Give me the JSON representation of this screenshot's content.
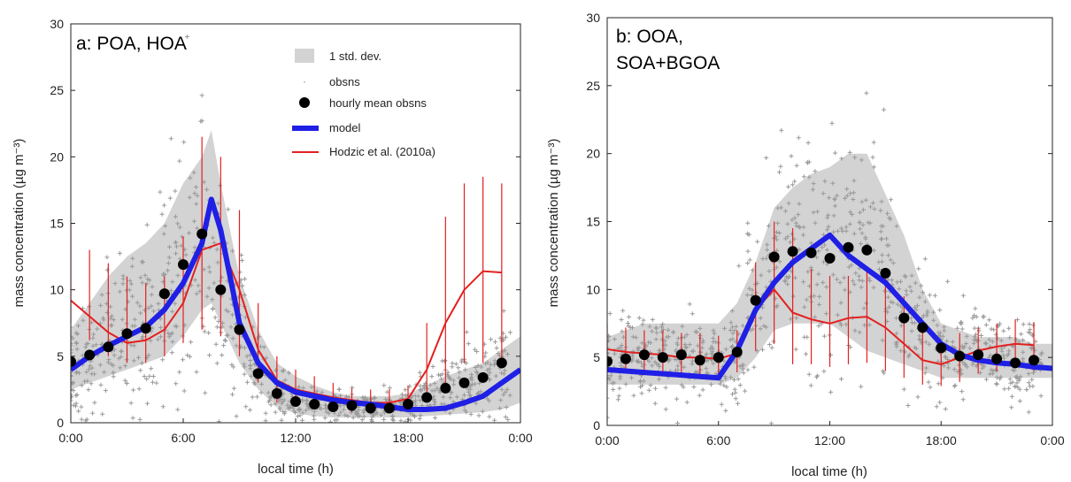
{
  "colors": {
    "band": "#d3d3d3",
    "obs": "#999999",
    "mean": "#000000",
    "model": "#1f1fe6",
    "hodzic": "#e32020",
    "axis": "#222222"
  },
  "chart_data": [
    {
      "type": "line",
      "title_lines": [
        "a: POA, HOA"
      ],
      "xlabel": "local time (h)",
      "ylabel": "mass concentration (µg m⁻³)",
      "xlim": [
        0,
        24
      ],
      "ylim": [
        0,
        30
      ],
      "xticks": [
        0,
        6,
        12,
        18,
        24
      ],
      "xtick_labels": [
        "0:00",
        "6:00",
        "12:00",
        "18:00",
        "0:00"
      ],
      "yticks": [
        0,
        5,
        10,
        15,
        20,
        25,
        30
      ],
      "legend": {
        "placement": "top-center",
        "entries": [
          {
            "kind": "band",
            "label": "1 std. dev."
          },
          {
            "kind": "obs",
            "label": "obsns"
          },
          {
            "kind": "mean",
            "label": "hourly mean obsns"
          },
          {
            "kind": "model",
            "label": "model"
          },
          {
            "kind": "hodzic",
            "label": "Hodzic et al. (2010a)"
          }
        ]
      },
      "std_band": {
        "x": [
          0,
          1,
          2,
          3,
          4,
          5,
          6,
          7,
          7.5,
          8,
          9,
          10,
          11,
          12,
          13,
          14,
          15,
          16,
          17,
          18,
          19,
          20,
          21,
          22,
          23,
          24
        ],
        "lower": [
          2.5,
          3,
          3.5,
          4,
          4.5,
          5,
          6.5,
          8.5,
          9,
          7.5,
          4.5,
          2.5,
          1.2,
          0.7,
          0.5,
          0.4,
          0.4,
          0.4,
          0.4,
          0.4,
          0.5,
          0.6,
          0.7,
          0.8,
          1.0,
          1.5
        ],
        "upper": [
          7,
          9,
          11,
          12.5,
          13.5,
          15,
          18,
          20,
          22,
          18,
          11,
          7,
          4.5,
          3.5,
          2.8,
          2.3,
          2,
          2,
          2,
          2.2,
          2.8,
          3.5,
          4,
          4.5,
          5.5,
          6.5
        ]
      },
      "hourly_mean": {
        "x": [
          0,
          1,
          2,
          3,
          4,
          5,
          6,
          7,
          8,
          9,
          10,
          11,
          12,
          13,
          14,
          15,
          16,
          17,
          18,
          19,
          20,
          21,
          22,
          23
        ],
        "y": [
          4.6,
          5.1,
          5.7,
          6.7,
          7.1,
          9.7,
          11.9,
          14.2,
          10.0,
          7.0,
          3.7,
          2.2,
          1.6,
          1.4,
          1.2,
          1.3,
          1.1,
          1.1,
          1.4,
          1.9,
          2.6,
          3.0,
          3.4,
          4.5
        ]
      },
      "model": {
        "x": [
          0,
          1,
          2,
          3,
          4,
          5,
          6,
          7,
          7.5,
          8,
          9,
          10,
          11,
          12,
          13,
          14,
          15,
          16,
          17,
          18,
          19,
          20,
          21,
          22,
          23,
          24
        ],
        "y": [
          4.0,
          5.0,
          5.8,
          6.5,
          7.2,
          8.5,
          10.5,
          13.5,
          16.8,
          14.5,
          7.5,
          4.5,
          3.0,
          2.3,
          2.0,
          1.7,
          1.5,
          1.4,
          1.2,
          1.0,
          1.0,
          1.1,
          1.5,
          2.0,
          3.0,
          4.0
        ]
      },
      "hodzic": {
        "x": [
          0,
          1,
          2,
          3,
          4,
          5,
          6,
          7,
          8,
          9,
          10,
          11,
          12,
          13,
          14,
          15,
          16,
          17,
          18,
          19,
          20,
          21,
          22,
          23
        ],
        "y": [
          9.2,
          8.0,
          6.8,
          6.0,
          6.2,
          7.0,
          9.0,
          13.0,
          13.5,
          10.0,
          5.5,
          3.2,
          2.5,
          2.2,
          1.9,
          1.7,
          1.5,
          1.5,
          1.8,
          4.0,
          7.5,
          10.0,
          11.4,
          11.3
        ],
        "err_low": [
          7.5,
          6.2,
          5.0,
          4.5,
          4.5,
          5.0,
          6.0,
          7.0,
          6.5,
          5.0,
          3.0,
          1.5,
          1.2,
          1.0,
          0.9,
          0.8,
          0.7,
          0.8,
          0.9,
          1.5,
          3.0,
          4.5,
          4.5,
          4.8
        ],
        "err_high": [
          15.0,
          13.0,
          12.0,
          11.0,
          10.5,
          11.0,
          14.0,
          21.5,
          20.0,
          16.0,
          9.0,
          5.0,
          4.0,
          3.5,
          3.0,
          2.6,
          2.5,
          2.5,
          2.8,
          7.5,
          15.5,
          18.0,
          18.5,
          18.0
        ]
      },
      "obs_scatter": {
        "count_per_hour": 40,
        "center": [
          4.6,
          5.1,
          5.7,
          6.7,
          7.1,
          9.7,
          11.9,
          14.2,
          10.0,
          7.0,
          3.7,
          2.2,
          1.6,
          1.4,
          1.2,
          1.3,
          1.1,
          1.1,
          1.4,
          1.9,
          2.6,
          3.0,
          3.4,
          4.5
        ],
        "spread": [
          3.5,
          4.0,
          4.5,
          5.0,
          5.5,
          6.5,
          7.5,
          8.5,
          6.5,
          4.5,
          2.5,
          1.6,
          1.2,
          1.0,
          0.9,
          0.9,
          0.8,
          0.9,
          1.2,
          1.6,
          2.0,
          2.3,
          2.6,
          3.0
        ]
      }
    },
    {
      "type": "line",
      "title_lines": [
        "b: OOA,",
        "SOA+BGOA"
      ],
      "xlabel": "local time (h)",
      "ylabel": "mass concentration (µg m⁻³)",
      "xlim": [
        0,
        24
      ],
      "ylim": [
        0,
        30
      ],
      "xticks": [
        0,
        6,
        12,
        18,
        24
      ],
      "xtick_labels": [
        "0:00",
        "6:00",
        "12:00",
        "18:00",
        "0:00"
      ],
      "yticks": [
        0,
        5,
        10,
        15,
        20,
        25,
        30
      ],
      "std_band": {
        "x": [
          0,
          1,
          2,
          3,
          4,
          5,
          6,
          7,
          8,
          9,
          10,
          11,
          12,
          13,
          14,
          15,
          16,
          17,
          18,
          19,
          20,
          21,
          22,
          23,
          24
        ],
        "lower": [
          3,
          3,
          3,
          3,
          3,
          3,
          3,
          3.5,
          5,
          7,
          7.5,
          7.5,
          7.5,
          6.5,
          5.5,
          5,
          4.5,
          4,
          3.5,
          3.5,
          3.5,
          3.5,
          3.5,
          3.5,
          3.5
        ],
        "upper": [
          6.5,
          7,
          7.5,
          7.5,
          7.5,
          7.5,
          7.5,
          9,
          12,
          16,
          17.5,
          18.5,
          19,
          20,
          20,
          17,
          14,
          10,
          7.5,
          7,
          6.5,
          6.5,
          6.5,
          6,
          6
        ]
      },
      "hourly_mean": {
        "x": [
          0,
          1,
          2,
          3,
          4,
          5,
          6,
          7,
          8,
          9,
          10,
          11,
          12,
          13,
          14,
          15,
          16,
          17,
          18,
          19,
          20,
          21,
          22,
          23
        ],
        "y": [
          4.7,
          4.9,
          5.2,
          5.0,
          5.2,
          4.8,
          5.0,
          5.4,
          9.2,
          12.4,
          12.8,
          12.7,
          12.3,
          13.1,
          12.9,
          11.2,
          7.9,
          7.2,
          5.7,
          5.1,
          5.2,
          4.9,
          4.6,
          4.8
        ]
      },
      "model": {
        "x": [
          0,
          1,
          2,
          3,
          4,
          5,
          6,
          7,
          8,
          9,
          10,
          11,
          12,
          13,
          14,
          15,
          16,
          17,
          18,
          19,
          20,
          21,
          22,
          23,
          24
        ],
        "y": [
          4.1,
          4.0,
          3.9,
          3.8,
          3.7,
          3.6,
          3.5,
          5.5,
          8.5,
          10.5,
          12.0,
          13.0,
          14.0,
          12.5,
          11.5,
          10.5,
          9.0,
          7.5,
          6.0,
          5.2,
          4.8,
          4.6,
          4.5,
          4.3,
          4.2
        ]
      },
      "hodzic": {
        "x": [
          0,
          1,
          2,
          3,
          4,
          5,
          6,
          7,
          8,
          9,
          10,
          11,
          12,
          13,
          14,
          15,
          16,
          17,
          18,
          19,
          20,
          21,
          22,
          23
        ],
        "y": [
          5.6,
          5.4,
          5.3,
          5.2,
          5.0,
          5.0,
          4.9,
          5.3,
          8.5,
          10.0,
          8.3,
          7.8,
          7.5,
          7.9,
          8.0,
          7.2,
          6.0,
          4.8,
          4.5,
          5.0,
          5.5,
          5.8,
          6.0,
          5.9
        ],
        "err_low": [
          4.0,
          4.0,
          4.0,
          3.8,
          3.7,
          3.7,
          3.6,
          3.9,
          5.5,
          6.0,
          4.5,
          4.5,
          4.3,
          4.5,
          4.6,
          4.0,
          3.5,
          3.0,
          2.9,
          3.2,
          3.8,
          4.0,
          4.2,
          4.0
        ],
        "err_high": [
          7.5,
          7.2,
          7.0,
          7.0,
          6.8,
          6.8,
          6.6,
          7.0,
          12.0,
          15.0,
          14.5,
          11.5,
          11.0,
          11.0,
          11.5,
          11.0,
          9.5,
          7.5,
          6.2,
          6.8,
          7.2,
          7.5,
          7.8,
          7.6
        ]
      },
      "obs_scatter": {
        "count_per_hour": 40,
        "center": [
          4.7,
          4.9,
          5.2,
          5.0,
          5.2,
          4.8,
          5.0,
          5.4,
          9.2,
          12.4,
          12.8,
          12.7,
          12.3,
          13.1,
          12.9,
          11.2,
          7.9,
          7.2,
          5.7,
          5.1,
          5.2,
          4.9,
          4.6,
          4.8
        ],
        "spread": [
          2.5,
          2.5,
          2.6,
          2.6,
          2.6,
          2.5,
          2.6,
          3.0,
          5.0,
          6.5,
          7.0,
          7.5,
          7.5,
          7.5,
          7.0,
          6.0,
          4.5,
          3.5,
          2.8,
          2.5,
          2.5,
          2.5,
          2.4,
          2.4
        ]
      }
    }
  ]
}
